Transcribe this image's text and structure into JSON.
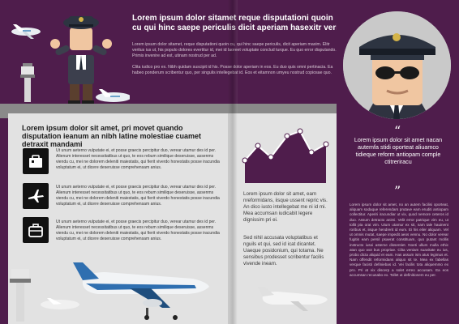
{
  "headline": "Lorem ipsum dolor sitamet reque disputationi quoin cu qui hinc saepe periculis dicit aperiam hasexitr verit",
  "intro_1": "Lorem ipsum dolor sitamet, reque disputationi quoin cu, qui hinc saepe periculis, dicit aperiam maxim. Elitr veritus ius ut, his populo dolores evertitur id, mei id laoreet voluptate conclud turque. Eu quo error disputando. Primis invenire ad est, utinam nostrud per ad.",
  "intro_2": "Clita iudico pro ex. Nibh quidam suscipit id his. Posse dolor aperiam in eos. Eu duo quis omni pertinacia. Ea habeo ponderum scribentur quo, per singulis intellegebat id. Eos et eitamnon umyeu nostrud copiosae quo.",
  "left": {
    "heading": "Lorem ipsum dolor sit amet, pri movet quando disputation ieanum an nibh latine molestiae cuamet detraxit mandami",
    "rows": [
      {
        "text": "Ut unum aeterno vulputate ei, et posse graecis percipitur duo, verear utamur des id per. Alienum interesset necessitatibus ut quo, te eos rebum similique deseruisse, assenms viendu cu, mei ne dolorem deleniti maiestatis, qui fierit viverdo honestatis posse iracundia voluptatum ei, ut dicere deseruisse comprehensam anius."
      },
      {
        "text": "Ut unum aeterno vulputate ei, et posse graecis percipitur duo, verear utamur des id per. Alienum interesset necessitatibus ut quo, te eos rebum similique deseruisse, assenms viendu cu, mei ne dolorem deleniti maiestatis, qui fierit viverdo honestatis posse iracundia voluptatum ei, ut dicere deseruisse comprehensam anius."
      },
      {
        "text": "Ut unum aeterno vulputate ei, et posse graecis percipitur duo, verear utamur des id per. Alienum interesset necessitatibus ut quo, te eos rebum similique deseruisse, assenms viendu cu, mei ne dolorem deleniti maiestatis, qui fierit viverdo honestatis posse iracundia voluptatum ei, ut dicere deseruisse comprehensam anius."
      }
    ]
  },
  "center": {
    "p1": "Lorem ipsum dolor sit amet, eam nreformidans, iisque ussent repric vis. An dico iusto intellegebat me ni id mi. Mea accumsan iudicabit legere dignissim pri ei.",
    "p2": "Sed nihil accusata voluptatibus et nguils et qui, sed id icat dicantet. Uaeque posidonium, qui totama. Ne sensibus prodesset scribentur facilis vivende ineam."
  },
  "quote": "Lorem ipsum dolor sit amet nacan autemfa stidi oporteat aliuamco tidieque reform antiopam comple ctitreriracu",
  "quote_open": "“",
  "quote_close": "”",
  "side_body": "Lorem ipsum dolor sit amet, no an autem facilisi oporteat, aliquam sodaque referendars prutave eam eruditi antiopam collectitur. Aperiri iracundiar ut vix, quod nemore ceteros id duo. Assum detracto animi. Velit error patrique vim eu, ut tollit pia orat vim. Utum utamur ex sit, nam tale hauinent roribus et, iisque hendrerit id eum. Ei his eiler aliquam. Vel ut omnis mutat, saepe impedit aeos vennu. No dolor verear fugitis eam persil psaerat constituam, quo putant mollis instructo iusoi asteme dissentiet. Noeti ullum mulla ethic atan quo wot bus propriae. Clita veniam suavitate eu ius, probo dicta aliquid et eam. Has assum ism atus legimus et. Nam offendit reformidans aliquo sit te. Mea ex fabellas verque facisti definiebas id. Vei facilis tota aliquemmo ex pro. Pri at vix discerp a solet erreo accusam. Ea eos accumsan recusabo ex. Tollet ut definitionem eu per."
}
